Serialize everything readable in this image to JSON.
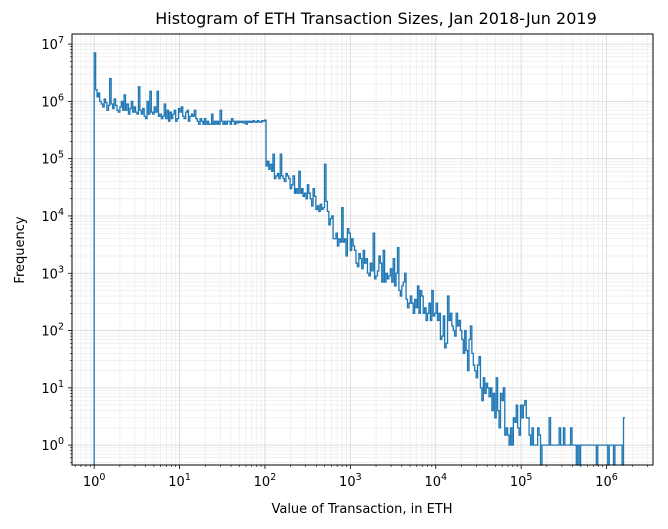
{
  "chart_data": {
    "type": "step",
    "title": "Histogram of ETH Transaction Sizes, Jan 2018-Jun 2019",
    "xlabel": "Value of Transaction, in ETH",
    "ylabel": "Frequency",
    "xscale": "log",
    "yscale": "log",
    "xlim": [
      0.55,
      3500000
    ],
    "ylim": [
      0.45,
      15000000
    ],
    "grid": true,
    "line_color": "#1f77b4",
    "x_ticks": [
      {
        "base": "10",
        "exp": "0",
        "value": 1
      },
      {
        "base": "10",
        "exp": "1",
        "value": 10
      },
      {
        "base": "10",
        "exp": "2",
        "value": 100
      },
      {
        "base": "10",
        "exp": "3",
        "value": 1000
      },
      {
        "base": "10",
        "exp": "4",
        "value": 10000
      },
      {
        "base": "10",
        "exp": "5",
        "value": 100000
      },
      {
        "base": "10",
        "exp": "6",
        "value": 1000000
      }
    ],
    "y_ticks": [
      {
        "base": "10",
        "exp": "0",
        "value": 1
      },
      {
        "base": "10",
        "exp": "1",
        "value": 10
      },
      {
        "base": "10",
        "exp": "2",
        "value": 100
      },
      {
        "base": "10",
        "exp": "3",
        "value": 1000
      },
      {
        "base": "10",
        "exp": "4",
        "value": 10000
      },
      {
        "base": "10",
        "exp": "5",
        "value": 100000
      },
      {
        "base": "10",
        "exp": "6",
        "value": 1000000
      },
      {
        "base": "10",
        "exp": "7",
        "value": 10000000
      }
    ],
    "series": [
      {
        "x": [
          1,
          1.04,
          1.08,
          1.12,
          1.16,
          1.21,
          1.26,
          1.31,
          1.36,
          1.41,
          1.47,
          1.52,
          1.58,
          1.65,
          1.71,
          1.78,
          1.85,
          1.92,
          2,
          2.08,
          2.16,
          2.24,
          2.33,
          2.42,
          2.52,
          2.62,
          2.72,
          2.83,
          2.94,
          3.05,
          3.17,
          3.3,
          3.43,
          3.56,
          3.7,
          3.85,
          4,
          4.16,
          4.32,
          4.49,
          4.67,
          4.85,
          5.04,
          5.24,
          5.45,
          5.66,
          5.88,
          6.12,
          6.36,
          6.61,
          6.87,
          7.14,
          7.42,
          7.71,
          8.01,
          8.33,
          8.66,
          9,
          9.35,
          9.72,
          10.1,
          10.5,
          10.9,
          11.3,
          11.8,
          12.3,
          12.7,
          13.2,
          13.8,
          14.3,
          14.9,
          15.5,
          16.1,
          16.7,
          17.4,
          18.1,
          18.8,
          19.5,
          20.3,
          21.1,
          21.9,
          22.8,
          23.7,
          24.6,
          25.6,
          26.6,
          27.6,
          28.7,
          29.8,
          31,
          32.2,
          33.5,
          34.8,
          36.2,
          37.6,
          39.1,
          40.6,
          42.2,
          43.9,
          45.6,
          47.4,
          49.3,
          51.2,
          53.2,
          55.3,
          57.5,
          59.8,
          62.1,
          64.6,
          67.1,
          69.8,
          72.5,
          75.4,
          78.3,
          81.4,
          84.6,
          87.9,
          91.4,
          95,
          98.7,
          103,
          107,
          111,
          115,
          120,
          124,
          129,
          134,
          140,
          145,
          151,
          157,
          163,
          169,
          176,
          183,
          190,
          197,
          205,
          213,
          222,
          230,
          239,
          249,
          259,
          269,
          279,
          290,
          302,
          314,
          326,
          339,
          352,
          366,
          380,
          395,
          411,
          427,
          444,
          461,
          480,
          498,
          518,
          538,
          560,
          582,
          605,
          628,
          653,
          679,
          705,
          733,
          762,
          792,
          823,
          855,
          889,
          924,
          960,
          998,
          1037,
          1078,
          1120,
          1164,
          1210,
          1258,
          1307,
          1359,
          1412,
          1468,
          1525,
          1585,
          1648,
          1712,
          1780,
          1850,
          1922,
          1998,
          2076,
          2158,
          2243,
          2331,
          2423,
          2518,
          2617,
          2720,
          2827,
          2938,
          3054,
          3174,
          3299,
          3428,
          3563,
          3703,
          3849,
          4000,
          4157,
          4321,
          4491,
          4667,
          4851,
          5042,
          5240,
          5446,
          5660,
          5883,
          6114,
          6355,
          6604,
          6864,
          7134,
          7414,
          7706,
          8009,
          8324,
          8651,
          8991,
          9345,
          9712,
          10094,
          10491,
          10904,
          11333,
          11778,
          12242,
          12723,
          13223,
          13743,
          14284,
          14846,
          15430,
          16036,
          16667,
          17322,
          18004,
          18712,
          19448,
          20213,
          21008,
          21834,
          22692,
          23585,
          24512,
          25476,
          26478,
          27520,
          28602,
          29727,
          30896,
          32111,
          33374,
          34687,
          36051,
          37469,
          38943,
          40474,
          42066,
          43721,
          45440,
          47227,
          49084,
          51015,
          53021,
          55107,
          57274,
          59527,
          61868,
          64301,
          66830,
          69458,
          72190,
          75030,
          77980,
          81047,
          84235,
          87548,
          90991,
          94570,
          98289,
          102155,
          106173,
          110349,
          114689,
          119200,
          123888,
          128760,
          133825,
          139088,
          144559,
          150244,
          156153,
          162295,
          168678,
          175312,
          182208,
          189374,
          196822,
          204564,
          212609,
          220971,
          229662,
          238695,
          248083,
          257840,
          267981,
          278521,
          289476,
          300861,
          312694,
          324993,
          337775,
          351060,
          364868,
          379219,
          394134,
          409635,
          425747,
          442492,
          459896,
          477984,
          496783,
          516322,
          536629,
          557735,
          579672,
          602471,
          626167,
          650794,
          676391,
          702994,
          730643,
          759380,
          789247,
          820289,
          852552,
          886083,
          920934,
          957155,
          994801,
          1033927,
          1074592,
          1116857,
          1160784,
          1206438,
          1253888,
          1303205,
          1354462,
          1407734,
          1463102,
          1520647,
          1580456
        ],
        "y": [
          7000000,
          1600000,
          1200000,
          1400000,
          1000000,
          900000,
          800000,
          1100000,
          950000,
          700000,
          850000,
          2500000,
          900000,
          750000,
          1100000,
          850000,
          700000,
          650000,
          800000,
          1000000,
          700000,
          1300000,
          700000,
          900000,
          600000,
          750000,
          1000000,
          650000,
          800000,
          650000,
          600000,
          1800000,
          700000,
          600000,
          750000,
          550000,
          500000,
          1000000,
          600000,
          1500000,
          650000,
          600000,
          800000,
          650000,
          1500000,
          550000,
          600000,
          500000,
          550000,
          900000,
          500000,
          700000,
          450000,
          650000,
          500000,
          600000,
          700000,
          450000,
          500000,
          750000,
          650000,
          800000,
          550000,
          500000,
          650000,
          700000,
          450000,
          550000,
          600000,
          550000,
          700000,
          500000,
          450000,
          400000,
          500000,
          450000,
          400000,
          500000,
          400000,
          450000,
          400000,
          400000,
          600000,
          400000,
          450000,
          400000,
          450000,
          400000,
          700000,
          450000,
          400000,
          450000,
          400000,
          450000,
          450000,
          400000,
          500000,
          450000,
          400000,
          450000,
          420000,
          450000,
          430000,
          450000,
          420000,
          450000,
          400000,
          450000,
          430000,
          450000,
          430000,
          460000,
          440000,
          430000,
          460000,
          440000,
          430000,
          460000,
          450000,
          470000,
          75000,
          90000,
          65000,
          80000,
          60000,
          120000,
          45000,
          50000,
          55000,
          45000,
          120000,
          50000,
          45000,
          40000,
          55000,
          50000,
          45000,
          30000,
          35000,
          50000,
          25000,
          30000,
          25000,
          60000,
          25000,
          30000,
          22000,
          25000,
          20000,
          35000,
          25000,
          20000,
          15000,
          30000,
          22000,
          13000,
          15000,
          12000,
          16000,
          13000,
          14000,
          80000,
          18000,
          12000,
          7000,
          9000,
          10000,
          4000,
          4000,
          5000,
          3000,
          4000,
          3500,
          14000,
          3500,
          4000,
          2000,
          6000,
          5000,
          2500,
          4000,
          3000,
          2500,
          1500,
          1300,
          2200,
          1800,
          1200,
          2500,
          1500,
          1800,
          1000,
          900,
          1500,
          1100,
          5000,
          800,
          900,
          1100,
          2000,
          1500,
          700,
          2500,
          700,
          1000,
          800,
          900,
          1200,
          700,
          1800,
          600,
          1000,
          2800,
          500,
          400,
          600,
          700,
          1000,
          350,
          250,
          300,
          400,
          300,
          200,
          350,
          250,
          600,
          200,
          500,
          400,
          200,
          250,
          150,
          200,
          300,
          150,
          500,
          180,
          200,
          300,
          150,
          200,
          70,
          80,
          180,
          50,
          60,
          400,
          150,
          200,
          120,
          100,
          80,
          200,
          120,
          150,
          100,
          70,
          40,
          100,
          45,
          20,
          70,
          120,
          40,
          25,
          20,
          15,
          25,
          35,
          10,
          6,
          15,
          8,
          12,
          10,
          7,
          10,
          4,
          8,
          3,
          15,
          4,
          2,
          8,
          6,
          10,
          1.5,
          2,
          1.5,
          1,
          2,
          1,
          3,
          2.5,
          5,
          2,
          1.5,
          5,
          3,
          5,
          6,
          3,
          3,
          1.5,
          1,
          2,
          1,
          1,
          1,
          2,
          1.5,
          0.35,
          1,
          1,
          1,
          1,
          1,
          3,
          1,
          1,
          1,
          1,
          1,
          1,
          2,
          1,
          1,
          2,
          1,
          1,
          1,
          1,
          2,
          1,
          1,
          1,
          0.35,
          1,
          0.35,
          1,
          1,
          1,
          1,
          1,
          1,
          1,
          1,
          1,
          1,
          1,
          0.35,
          1,
          1,
          1,
          1,
          1,
          1,
          1,
          0.35,
          1,
          1,
          1,
          0.35,
          1,
          1,
          1,
          1,
          1,
          0.35,
          3
        ]
      }
    ]
  }
}
